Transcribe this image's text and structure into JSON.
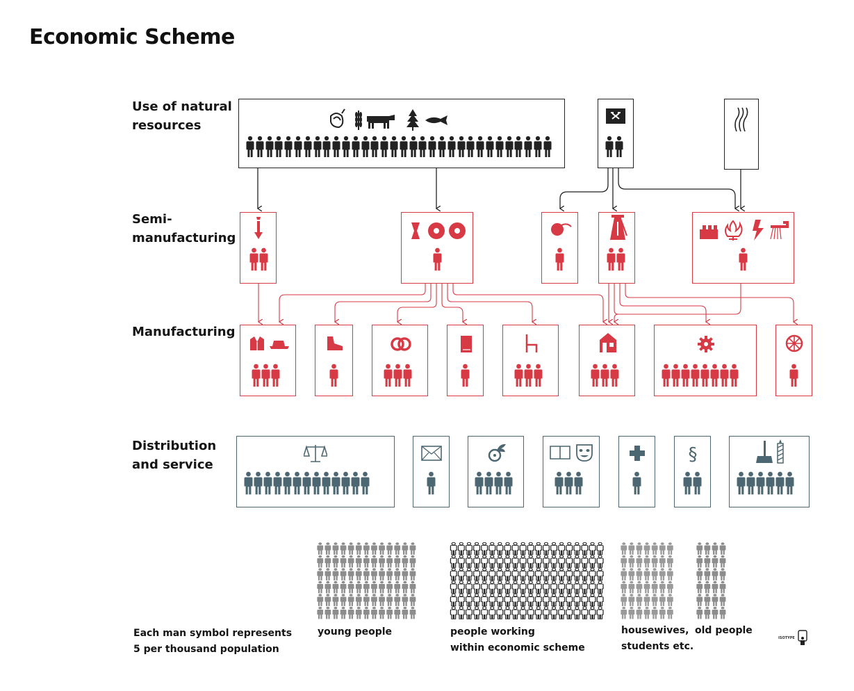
{
  "title": "Economic Scheme",
  "rows": {
    "natural": "Use of natural\nresources",
    "semi": "Semi-\nmanufacturing",
    "manufacturing": "Manufacturing",
    "distribution": "Distribution\nand service"
  },
  "colors": {
    "black": "#222222",
    "red": "#d73a45",
    "slate": "#4c6771",
    "grey": "#8a8a8a"
  },
  "figure_counts": {
    "natural": [
      32,
      2,
      0
    ],
    "semi": [
      2,
      1,
      1,
      2,
      1
    ],
    "manufacturing": [
      3,
      1,
      3,
      1,
      3,
      3,
      8,
      1
    ],
    "distribution": [
      13,
      1,
      4,
      3,
      1,
      2,
      6
    ]
  },
  "icons": {
    "natural": [
      "basket-icon",
      "wheat-icon",
      "cow-icon",
      "tree-icon",
      "fish-icon",
      "mining-icon",
      "water-power-icon"
    ],
    "semi": [
      "furnace-icon",
      "textile-icon",
      "leather-icon",
      "spindle-icon",
      "chemical-icon",
      "gas-icon",
      "electricity-icon",
      "water-tap-icon",
      "derrick-icon"
    ],
    "manufacturing": [
      "clothing-icon",
      "shoe-icon",
      "bread-icon",
      "book-icon",
      "chair-icon",
      "house-icon",
      "gear-icon",
      "wheel-icon"
    ],
    "distribution": [
      "scales-icon",
      "envelope-icon",
      "winged-wheel-icon",
      "book-open-icon",
      "theatre-mask-icon",
      "cross-icon",
      "paragraph-icon",
      "broom-icon",
      "candle-icon"
    ]
  },
  "legend": {
    "note": "Each man symbol represents\n5 per thousand population",
    "young": "young people",
    "working": "people working\nwithin economic scheme",
    "housewives": "housewives,\nstudents etc.",
    "old": "old people",
    "badge": "ISOTYPE"
  }
}
